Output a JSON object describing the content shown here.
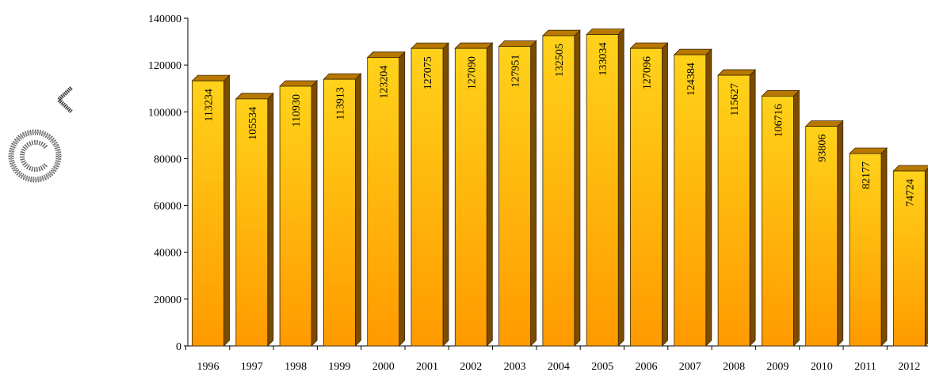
{
  "chart_data": {
    "type": "bar",
    "categories": [
      "1996",
      "1997",
      "1998",
      "1999",
      "2000",
      "2001",
      "2002",
      "2003",
      "2004",
      "2005",
      "2006",
      "2007",
      "2008",
      "2009",
      "2010",
      "2011",
      "2012"
    ],
    "values": [
      113234,
      105534,
      110930,
      113913,
      123204,
      127075,
      127090,
      127951,
      132505,
      133034,
      127096,
      124384,
      115627,
      106716,
      93806,
      82177,
      74724
    ],
    "data_labels": [
      "113234",
      "105534",
      "110930",
      "113913",
      "123204",
      "127075",
      "127090",
      "127951",
      "132505",
      "133034",
      "127096",
      "124384",
      "115627",
      "106716",
      "93806",
      "82177",
      "74724"
    ],
    "ylim": [
      0,
      140000
    ],
    "y_ticks": [
      0,
      20000,
      40000,
      60000,
      80000,
      100000,
      120000,
      140000
    ],
    "y_tick_labels": [
      "0",
      "20000",
      "40000",
      "60000",
      "80000",
      "100000",
      "120000",
      "140000"
    ],
    "title": "",
    "xlabel": "",
    "ylabel": "",
    "grid": false,
    "bar_style": "3d",
    "colors": {
      "bar_top": "#ffd21a",
      "bar_bottom": "#ff9a00",
      "bar_side": "#7a4b00",
      "bar_cap": "#b87800",
      "axis": "#000000"
    }
  },
  "icons": {
    "copyright": "copyright-icon",
    "back": "chevron-left-icon"
  }
}
